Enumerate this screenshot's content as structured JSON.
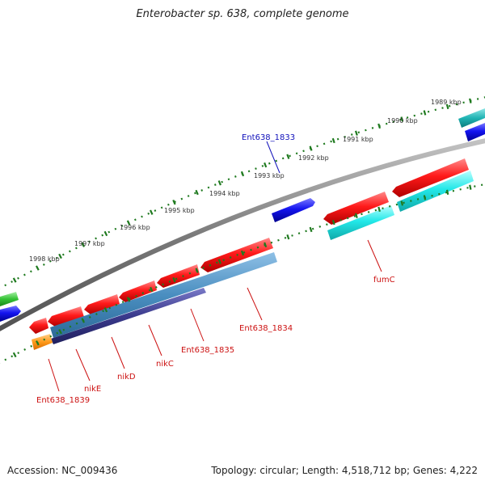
{
  "title": "Enterobacter sp. 638, complete genome",
  "footer": {
    "accession": "Accession: NC_009436",
    "topology": "Topology: circular; Length: 4,518,712 bp; Genes: 4,222"
  },
  "colors": {
    "backbone": "#8a8a8a",
    "tick_track": "#1f7a1f",
    "plus_cds": "#e8141b",
    "minus_cds": "#1c1cf0",
    "cyan_feature": "#19e6e6",
    "teal_feature": "#1fb8b8",
    "green_feature": "#36c236",
    "orange_feature": "#ff9a1a",
    "steel_feature": "#4a8ec0",
    "navy_feature": "#3a3a8c",
    "red_label": "#cc1111",
    "blue_label": "#1111bb"
  },
  "scale": {
    "ticks": [
      {
        "label": "1989 kbp"
      },
      {
        "label": "1990 kbp"
      },
      {
        "label": "1991 kbp"
      },
      {
        "label": "1992 kbp"
      },
      {
        "label": "1993 kbp"
      },
      {
        "label": "1994 kbp"
      },
      {
        "label": "1995 kbp"
      },
      {
        "label": "1996 kbp"
      },
      {
        "label": "1997 kbp"
      },
      {
        "label": "1998 kbp"
      }
    ]
  },
  "gene_labels": [
    {
      "name": "Ent638_1833",
      "color": "blue"
    },
    {
      "name": "fumC",
      "color": "red"
    },
    {
      "name": "Ent638_1834",
      "color": "red"
    },
    {
      "name": "Ent638_1835",
      "color": "red"
    },
    {
      "name": "nikC",
      "color": "red"
    },
    {
      "name": "nikD",
      "color": "red"
    },
    {
      "name": "nikE",
      "color": "red"
    },
    {
      "name": "Ent638_1839",
      "color": "red"
    }
  ]
}
